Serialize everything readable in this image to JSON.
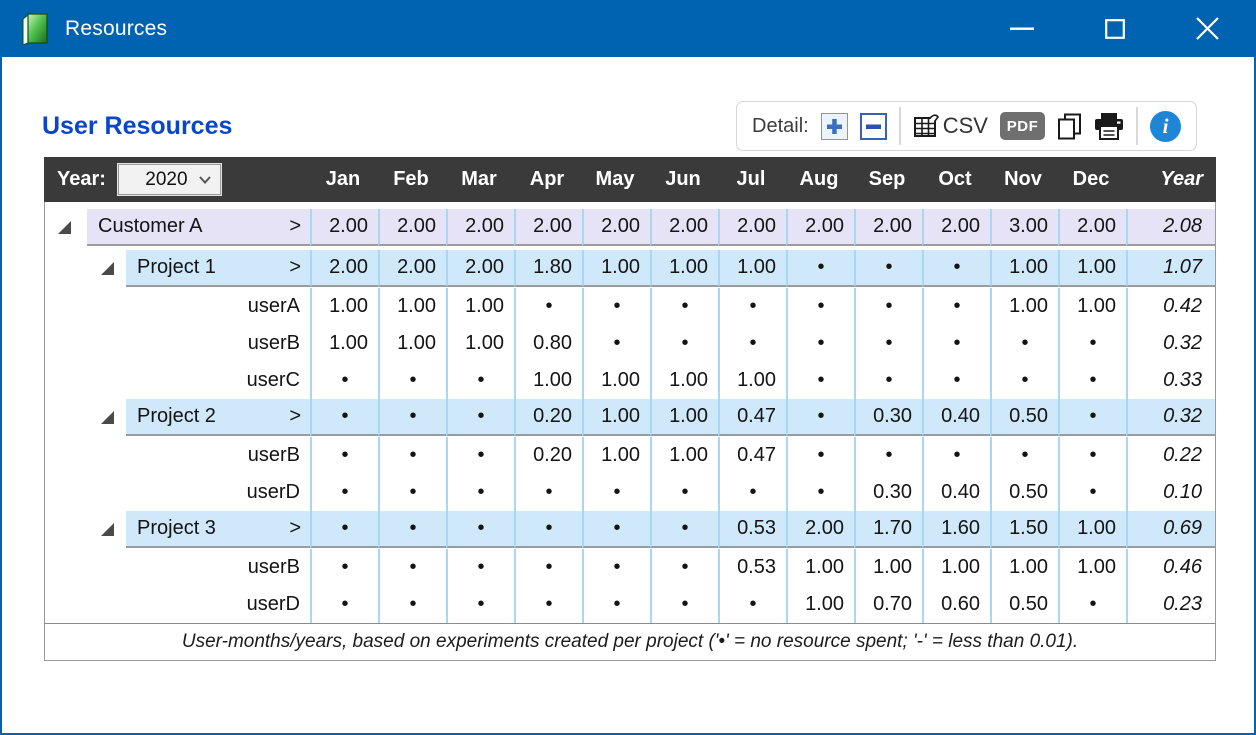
{
  "window": {
    "title": "Resources",
    "icons": {
      "app": "green-book-icon",
      "minimize": "minimize-icon",
      "maximize": "maximize-icon",
      "close": "close-icon"
    }
  },
  "page": {
    "heading": "User Resources"
  },
  "toolbar": {
    "detail_label": "Detail:",
    "csv_label": "CSV",
    "pdf_label": "PDF",
    "icons": [
      "plus-icon",
      "minus-icon",
      "spreadsheet-icon",
      "copy-icon",
      "printer-icon",
      "info-icon"
    ]
  },
  "table": {
    "year_label": "Year:",
    "year_value": "2020",
    "months": [
      "Jan",
      "Feb",
      "Mar",
      "Apr",
      "May",
      "Jun",
      "Jul",
      "Aug",
      "Sep",
      "Oct",
      "Nov",
      "Dec"
    ],
    "year_column": "Year",
    "rows": [
      {
        "type": "customer",
        "label": "Customer A",
        "link": ">",
        "expanded": true,
        "values": [
          "2.00",
          "2.00",
          "2.00",
          "2.00",
          "2.00",
          "2.00",
          "2.00",
          "2.00",
          "2.00",
          "2.00",
          "3.00",
          "2.00"
        ],
        "year": "2.08"
      },
      {
        "type": "project",
        "label": "Project 1",
        "link": ">",
        "expanded": true,
        "values": [
          "2.00",
          "2.00",
          "2.00",
          "1.80",
          "1.00",
          "1.00",
          "1.00",
          "•",
          "•",
          "•",
          "1.00",
          "1.00"
        ],
        "year": "1.07"
      },
      {
        "type": "user",
        "label": "userA",
        "values": [
          "1.00",
          "1.00",
          "1.00",
          "•",
          "•",
          "•",
          "•",
          "•",
          "•",
          "•",
          "1.00",
          "1.00"
        ],
        "year": "0.42"
      },
      {
        "type": "user",
        "label": "userB",
        "values": [
          "1.00",
          "1.00",
          "1.00",
          "0.80",
          "•",
          "•",
          "•",
          "•",
          "•",
          "•",
          "•",
          "•"
        ],
        "year": "0.32"
      },
      {
        "type": "user",
        "label": "userC",
        "values": [
          "•",
          "•",
          "•",
          "1.00",
          "1.00",
          "1.00",
          "1.00",
          "•",
          "•",
          "•",
          "•",
          "•"
        ],
        "year": "0.33"
      },
      {
        "type": "project",
        "label": "Project 2",
        "link": ">",
        "expanded": true,
        "values": [
          "•",
          "•",
          "•",
          "0.20",
          "1.00",
          "1.00",
          "0.47",
          "•",
          "0.30",
          "0.40",
          "0.50",
          "•"
        ],
        "year": "0.32"
      },
      {
        "type": "user",
        "label": "userB",
        "values": [
          "•",
          "•",
          "•",
          "0.20",
          "1.00",
          "1.00",
          "0.47",
          "•",
          "•",
          "•",
          "•",
          "•"
        ],
        "year": "0.22"
      },
      {
        "type": "user",
        "label": "userD",
        "values": [
          "•",
          "•",
          "•",
          "•",
          "•",
          "•",
          "•",
          "•",
          "0.30",
          "0.40",
          "0.50",
          "•"
        ],
        "year": "0.10"
      },
      {
        "type": "project",
        "label": "Project 3",
        "link": ">",
        "expanded": true,
        "values": [
          "•",
          "•",
          "•",
          "•",
          "•",
          "•",
          "0.53",
          "2.00",
          "1.70",
          "1.60",
          "1.50",
          "1.00"
        ],
        "year": "0.69"
      },
      {
        "type": "user",
        "label": "userB",
        "values": [
          "•",
          "•",
          "•",
          "•",
          "•",
          "•",
          "0.53",
          "1.00",
          "1.00",
          "1.00",
          "1.00",
          "1.00"
        ],
        "year": "0.46"
      },
      {
        "type": "user",
        "label": "userD",
        "values": [
          "•",
          "•",
          "•",
          "•",
          "•",
          "•",
          "•",
          "1.00",
          "0.70",
          "0.60",
          "0.50",
          "•"
        ],
        "year": "0.23"
      }
    ],
    "footnote": "User-months/years, based on experiments created per project ('•' = no resource spent; '-' = less than 0.01)."
  },
  "colors": {
    "titlebar_blue": "#0063b1",
    "heading_blue": "#0a46c8",
    "header_bar": "#3a3a3a",
    "customer_row": "#e6e3f7",
    "project_row": "#cfe8fa",
    "column_separator": "#a9d7f2",
    "info_blue": "#1f86d6",
    "pdf_gray": "#6f6f6f"
  }
}
